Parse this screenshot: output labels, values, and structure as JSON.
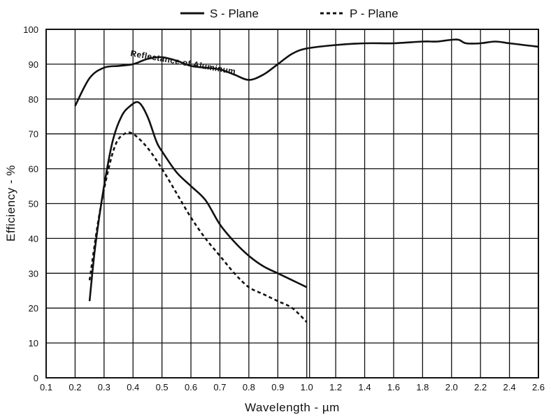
{
  "chart_data": {
    "type": "line",
    "xlabel": "Wavelength - µm",
    "ylabel": "Efficiency - %",
    "ylim": [
      0,
      100
    ],
    "y_ticks": [
      "0",
      "10",
      "20",
      "30",
      "40",
      "50",
      "60",
      "70",
      "80",
      "90",
      "100"
    ],
    "x_ticks": [
      "0.1",
      "0.2",
      "0.3",
      "0.4",
      "0.5",
      "0.6",
      "0.7",
      "0.8",
      "0.9",
      "1.0",
      "1.2",
      "1.4",
      "1.6",
      "1.8",
      "2.0",
      "2.2",
      "2.4",
      "2.6"
    ],
    "x_axis_note": "broken scale: 0.1-1.0 in steps of 0.1, then 1.0-2.6 in steps of 0.2",
    "grid": true,
    "legend_position": "top-center",
    "annotation": "Reflectance of Aluminum",
    "series": [
      {
        "name": "S - Plane",
        "style": "solid",
        "x": [
          0.25,
          0.27,
          0.3,
          0.33,
          0.36,
          0.39,
          0.42,
          0.45,
          0.48,
          0.5,
          0.55,
          0.6,
          0.65,
          0.7,
          0.75,
          0.8,
          0.85,
          0.9,
          0.95,
          1.0
        ],
        "y": [
          22,
          38,
          55,
          68,
          75,
          78,
          79,
          75,
          68,
          65,
          59,
          55,
          51,
          44,
          39,
          35,
          32,
          30,
          28,
          26
        ]
      },
      {
        "name": "P - Plane",
        "style": "dashed",
        "x": [
          0.25,
          0.28,
          0.31,
          0.34,
          0.37,
          0.4,
          0.45,
          0.5,
          0.55,
          0.6,
          0.65,
          0.7,
          0.75,
          0.8,
          0.85,
          0.9,
          0.95,
          1.0
        ],
        "y": [
          28,
          45,
          58,
          67,
          70,
          70,
          66,
          60,
          53,
          46,
          40,
          35,
          30,
          26,
          24,
          22,
          20,
          16
        ]
      },
      {
        "style": "solid",
        "x": [
          0.2,
          0.25,
          0.3,
          0.35,
          0.4,
          0.45,
          0.5,
          0.55,
          0.6,
          0.65,
          0.7,
          0.75,
          0.8,
          0.85,
          0.9,
          0.95,
          1.0,
          1.2,
          1.4,
          1.6,
          1.8,
          1.9,
          2.0,
          2.05,
          2.1,
          2.2,
          2.3,
          2.4,
          2.5,
          2.6
        ],
        "y": [
          78,
          86,
          89,
          89.5,
          90,
          91.5,
          92,
          91,
          89.5,
          89,
          88.5,
          87,
          85.5,
          87,
          90,
          93,
          94.5,
          95.5,
          96,
          96,
          96.5,
          96.5,
          97,
          97,
          96,
          96,
          96.5,
          96,
          95.5,
          95
        ]
      }
    ]
  }
}
